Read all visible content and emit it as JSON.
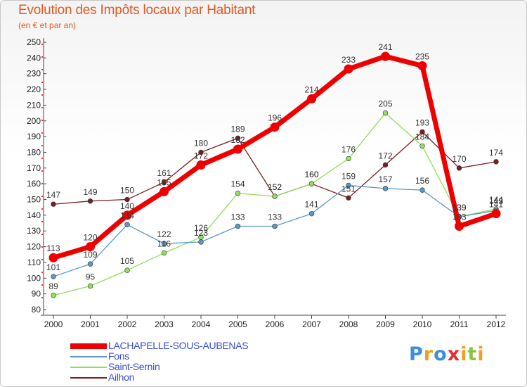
{
  "title": "Evolution des Impôts locaux par Habitant",
  "subtitle": "(en € et par an)",
  "brand": {
    "letters": [
      "P",
      "r",
      "o",
      "x",
      "i",
      "t",
      "i"
    ],
    "colors": [
      "#3a8fd8",
      "#f0a020",
      "#3a8fd8",
      "#e03030",
      "#f0a020",
      "#8cc63f",
      "#f0a020"
    ]
  },
  "chart_data": {
    "type": "line",
    "title": "Evolution des Impôts locaux par Habitant",
    "subtitle": "(en € et par an)",
    "x": [
      "2000",
      "2001",
      "2002",
      "2003",
      "2004",
      "2005",
      "2006",
      "2007",
      "2008",
      "2009",
      "2010",
      "2011",
      "2012"
    ],
    "ylim": [
      80,
      250
    ],
    "yticks": [
      80,
      90,
      100,
      110,
      120,
      130,
      140,
      150,
      160,
      170,
      180,
      190,
      200,
      210,
      220,
      230,
      240,
      250
    ],
    "grid": false,
    "legend": "bottom-left",
    "series": [
      {
        "name": "Ailhon",
        "color": "#7a1f1f",
        "width": 1.3,
        "values": [
          147,
          149,
          150,
          161,
          180,
          189,
          152,
          160,
          151,
          172,
          193,
          170,
          174
        ]
      },
      {
        "name": "Saint-Sernin",
        "color": "#8fe05a",
        "width": 1.3,
        "values": [
          89,
          95,
          105,
          116,
          126,
          154,
          152,
          160,
          176,
          205,
          184,
          139,
          144
        ]
      },
      {
        "name": "Fons",
        "color": "#5b98c8",
        "width": 1.3,
        "values": [
          101,
          109,
          134,
          122,
          123,
          133,
          133,
          141,
          159,
          157,
          156,
          139,
          143
        ]
      },
      {
        "name": "LACHAPELLE-SOUS-AUBENAS",
        "color": "#ee0000",
        "width": 7,
        "values": [
          113,
          120,
          140,
          155,
          172,
          182,
          196,
          214,
          233,
          241,
          235,
          133,
          141
        ]
      }
    ],
    "data_labels": [
      {
        "series": "Ailhon",
        "values": [
          147,
          149,
          150,
          161,
          180,
          189,
          152,
          160,
          151,
          172,
          193,
          170,
          174
        ]
      },
      {
        "series": "LACHAPELLE-SOUS-AUBENAS",
        "values": [
          113,
          120,
          140,
          155,
          172,
          182,
          196,
          214,
          233,
          241,
          235,
          133,
          141
        ]
      },
      {
        "series": "Fons",
        "values": [
          101,
          109,
          134,
          122,
          123,
          133,
          133,
          141,
          159,
          157,
          156,
          139,
          143
        ]
      },
      {
        "series": "Saint-Sernin",
        "values": [
          89,
          95,
          105,
          116,
          126,
          154,
          152,
          160,
          176,
          205,
          184,
          139,
          144
        ]
      }
    ],
    "legend_entries": [
      {
        "name": "LACHAPELLE-SOUS-AUBENAS",
        "color": "#ee0000",
        "text_color": "#3b4fd0",
        "thick": true
      },
      {
        "name": "Fons",
        "color": "#5b98c8",
        "text_color": "#3b4fd0",
        "thick": false
      },
      {
        "name": "Saint-Sernin",
        "color": "#8fe05a",
        "text_color": "#3b4fd0",
        "thick": false
      },
      {
        "name": "Ailhon",
        "color": "#7a1f1f",
        "text_color": "#3b4fd0",
        "thick": false
      }
    ]
  }
}
